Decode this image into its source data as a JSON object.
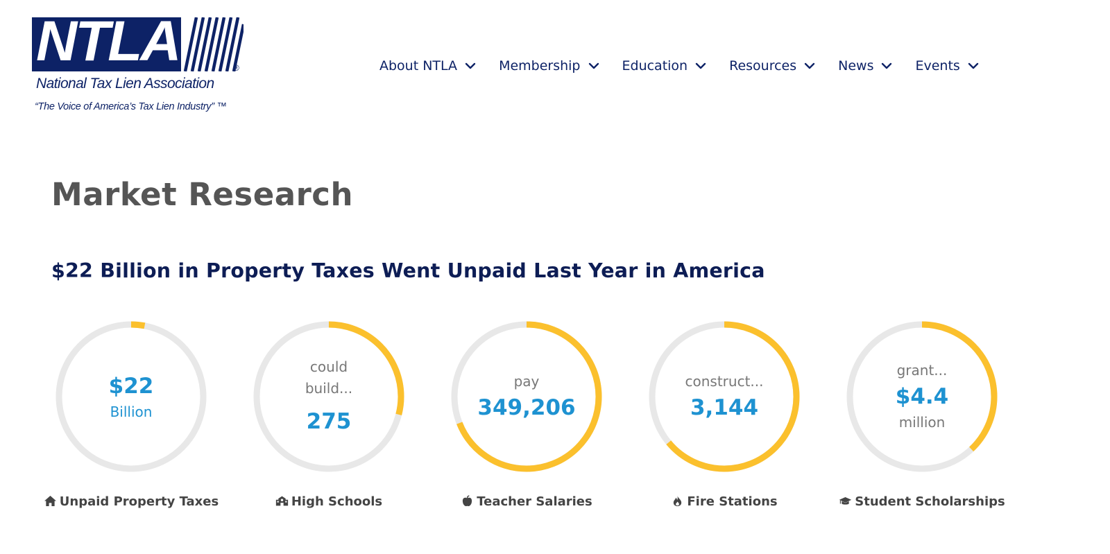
{
  "brand": {
    "logo_text": "NTLA",
    "name": "National Tax Lien Association",
    "tagline": "“The Voice of America’s Tax Lien Industry” ™",
    "color": "#0d2266"
  },
  "nav": {
    "items": [
      {
        "label": "About NTLA"
      },
      {
        "label": "Membership"
      },
      {
        "label": "Education"
      },
      {
        "label": "Resources"
      },
      {
        "label": "News"
      },
      {
        "label": "Events"
      }
    ]
  },
  "page": {
    "title": "Market Research",
    "subtitle": "$22 Billion in Property Taxes Went Unpaid Last Year in America"
  },
  "colors": {
    "accent": "#fbc02d",
    "track": "#e8e8e8",
    "number": "#1e92d1"
  },
  "stats": [
    {
      "pre": "",
      "number": "$22",
      "post": "Billion",
      "progress": 0.03,
      "caption": "Unpaid Property Taxes",
      "icon": "home-icon"
    },
    {
      "pre": "could build...",
      "number": "275",
      "post": "",
      "progress": 0.29,
      "caption": "High Schools",
      "icon": "school-icon"
    },
    {
      "pre": "pay",
      "number": "349,206",
      "post": "",
      "progress": 0.69,
      "caption": "Teacher Salaries",
      "icon": "apple-icon"
    },
    {
      "pre": "construct...",
      "number": "3,144",
      "post": "",
      "progress": 0.64,
      "caption": "Fire Stations",
      "icon": "fire-icon"
    },
    {
      "pre": "grant...",
      "number": "$4.4",
      "post": "million",
      "progress": 0.38,
      "caption": "Student Scholarships",
      "icon": "graduation-cap-icon"
    }
  ]
}
